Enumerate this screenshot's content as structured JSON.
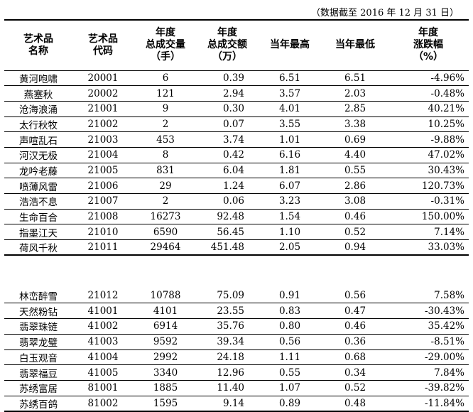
{
  "note": "（数据截至 2016 年 12 月 31 日）",
  "headers": [
    [
      "艺术品",
      "名称"
    ],
    [
      "艺术品",
      "代码"
    ],
    [
      "年度",
      "总成交量",
      "（手）"
    ],
    [
      "年度",
      "总成交额",
      "（万）"
    ],
    [
      "当年最高"
    ],
    [
      "当年最低"
    ],
    [
      "年度",
      "涨跌幅",
      "（%）"
    ]
  ],
  "group1": [
    {
      "name": "黄河咆啸",
      "code": "20001",
      "volume": "6",
      "amount": "0.39",
      "high": "6.51",
      "low": "6.51",
      "change": "-4.96%"
    },
    {
      "name": "燕塞秋",
      "code": "20002",
      "volume": "121",
      "amount": "2.94",
      "high": "3.57",
      "low": "2.03",
      "change": "-0.48%"
    },
    {
      "name": "沧海浪涌",
      "code": "21001",
      "volume": "9",
      "amount": "0.30",
      "high": "4.01",
      "low": "2.85",
      "change": "40.21%"
    },
    {
      "name": "太行秋牧",
      "code": "21002",
      "volume": "2",
      "amount": "0.07",
      "high": "3.55",
      "low": "3.38",
      "change": "10.25%"
    },
    {
      "name": "声喧乱石",
      "code": "21003",
      "volume": "453",
      "amount": "3.74",
      "high": "1.01",
      "low": "0.69",
      "change": "-9.88%"
    },
    {
      "name": "河汉无极",
      "code": "21004",
      "volume": "8",
      "amount": "0.42",
      "high": "6.16",
      "low": "4.40",
      "change": "47.02%"
    },
    {
      "name": "龙吟老藤",
      "code": "21005",
      "volume": "831",
      "amount": "6.04",
      "high": "1.81",
      "low": "0.55",
      "change": "30.43%"
    },
    {
      "name": "喷薄风雷",
      "code": "21006",
      "volume": "29",
      "amount": "1.24",
      "high": "6.07",
      "low": "2.86",
      "change": "120.73%"
    },
    {
      "name": "浩浩不息",
      "code": "21007",
      "volume": "2",
      "amount": "0.06",
      "high": "3.23",
      "low": "3.08",
      "change": "-0.31%"
    },
    {
      "name": "生命百合",
      "code": "21008",
      "volume": "16273",
      "amount": "92.48",
      "high": "1.54",
      "low": "0.46",
      "change": "150.00%"
    },
    {
      "name": "指墨江天",
      "code": "21010",
      "volume": "6590",
      "amount": "56.45",
      "high": "1.10",
      "low": "0.52",
      "change": "7.14%"
    },
    {
      "name": "荷风千秋",
      "code": "21011",
      "volume": "29464",
      "amount": "451.48",
      "high": "2.05",
      "low": "0.94",
      "change": "33.03%"
    }
  ],
  "group2": [
    {
      "name": "林峦醉雪",
      "code": "21012",
      "volume": "10788",
      "amount": "75.09",
      "high": "0.91",
      "low": "0.56",
      "change": "7.58%"
    },
    {
      "name": "天然粉钻",
      "code": "41001",
      "volume": "4101",
      "amount": "23.55",
      "high": "0.83",
      "low": "0.47",
      "change": "-30.43%"
    },
    {
      "name": "翡翠珠链",
      "code": "41002",
      "volume": "6914",
      "amount": "35.76",
      "high": "0.80",
      "low": "0.46",
      "change": "35.42%"
    },
    {
      "name": "翡翠龙璧",
      "code": "41003",
      "volume": "9592",
      "amount": "39.34",
      "high": "0.56",
      "low": "0.36",
      "change": "-8.51%"
    },
    {
      "name": "白玉观音",
      "code": "41004",
      "volume": "2992",
      "amount": "24.18",
      "high": "1.11",
      "low": "0.68",
      "change": "-29.00%"
    },
    {
      "name": "翡翠福豆",
      "code": "41005",
      "volume": "3340",
      "amount": "12.96",
      "high": "0.55",
      "low": "0.34",
      "change": "7.84%"
    },
    {
      "name": "苏绣富居",
      "code": "81001",
      "volume": "1885",
      "amount": "11.40",
      "high": "1.07",
      "low": "0.52",
      "change": "-39.82%"
    },
    {
      "name": "苏绣百鸽",
      "code": "81002",
      "volume": "1595",
      "amount": "9.14",
      "high": "0.89",
      "low": "0.48",
      "change": "-11.84%"
    }
  ]
}
